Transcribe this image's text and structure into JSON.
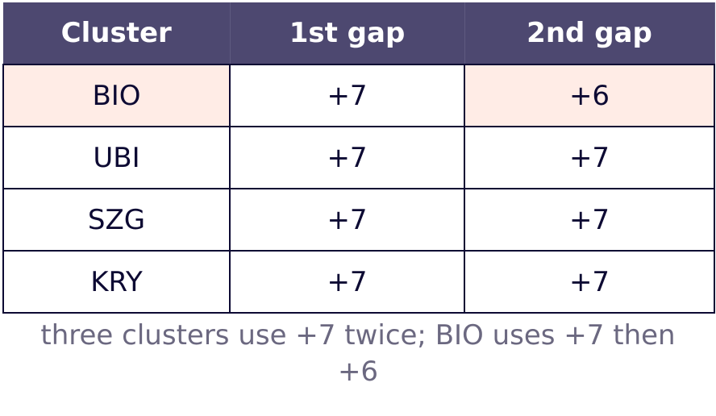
{
  "table": {
    "header": [
      "Cluster",
      "1st gap",
      "2nd gap"
    ],
    "rows": [
      [
        "BIO",
        "+7",
        "+6"
      ],
      [
        "UBI",
        "+7",
        "+7"
      ],
      [
        "SZG",
        "+7",
        "+7"
      ],
      [
        "KRY",
        "+7",
        "+7"
      ]
    ]
  },
  "caption": "three clusters use +7 twice; BIO uses +7 then +6"
}
